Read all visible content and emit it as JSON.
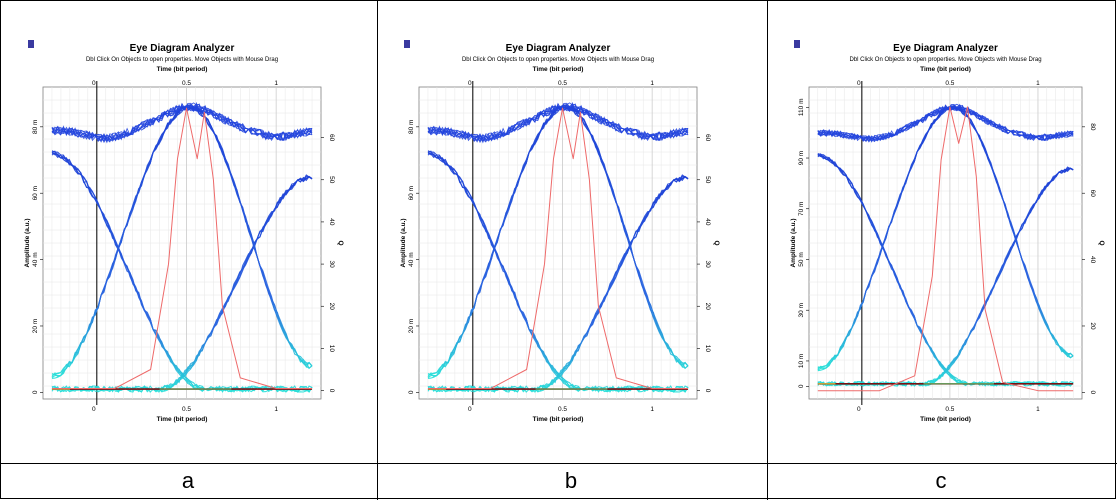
{
  "captions": [
    "a",
    "b",
    "c"
  ],
  "chart_data": [
    {
      "type": "line",
      "title": "Eye Diagram Analyzer",
      "subtitle": "Dbl Click On Objects to open properties.  Move Objects with Mouse Drag",
      "xlabel_top": "Time (bit period)",
      "xlabel": "Time (bit period)",
      "ylabel": "Amplitude (a.u.)",
      "ylabel_right": "Q",
      "xlim": [
        -0.3,
        1.25
      ],
      "ylim": [
        -2,
        92
      ],
      "xticks": [
        0,
        0.5,
        1
      ],
      "xtick_labels": [
        "0",
        "0.5",
        "1"
      ],
      "yticks": [
        0,
        20,
        40,
        60,
        80
      ],
      "ytick_labels": [
        "0",
        "20 m",
        "40 m",
        "60 m",
        "80 m"
      ],
      "ylim_right": [
        -2,
        72
      ],
      "yticks_right": [
        0,
        10,
        20,
        30,
        40,
        50,
        60
      ],
      "ytick_labels_right": [
        "0",
        "10",
        "20",
        "30",
        "40",
        "50",
        "60"
      ],
      "grid": true,
      "traces": {
        "upper_level": 79,
        "upper_peak": 86,
        "lower_level": 1,
        "start_high": 72,
        "end_high": 65,
        "start_low": 5,
        "end_low": 8
      },
      "q_factor": {
        "x": [
          -0.25,
          0.1,
          0.3,
          0.4,
          0.45,
          0.5,
          0.56,
          0.6,
          0.65,
          0.7,
          0.8,
          1.0,
          1.2
        ],
        "values": [
          0.5,
          0.5,
          5,
          30,
          55,
          67,
          55,
          66,
          50,
          20,
          3,
          0.5,
          0.5
        ]
      }
    },
    {
      "type": "line",
      "title": "Eye Diagram Analyzer",
      "subtitle": "Dbl Click On Objects to open properties.  Move Objects with Mouse Drag",
      "xlabel_top": "Time (bit period)",
      "xlabel": "Time (bit period)",
      "ylabel": "Amplitude (a.u.)",
      "ylabel_right": "Q",
      "xlim": [
        -0.3,
        1.25
      ],
      "ylim": [
        -2,
        92
      ],
      "xticks": [
        0,
        0.5,
        1
      ],
      "xtick_labels": [
        "0",
        "0.5",
        "1"
      ],
      "yticks": [
        0,
        20,
        40,
        60,
        80
      ],
      "ytick_labels": [
        "0",
        "20 m",
        "40 m",
        "60 m",
        "80 m"
      ],
      "ylim_right": [
        -2,
        72
      ],
      "yticks_right": [
        0,
        10,
        20,
        30,
        40,
        50,
        60
      ],
      "ytick_labels_right": [
        "0",
        "10",
        "20",
        "30",
        "40",
        "50",
        "60"
      ],
      "grid": true,
      "traces": {
        "upper_level": 79,
        "upper_peak": 86,
        "lower_level": 1,
        "start_high": 72,
        "end_high": 65,
        "start_low": 5,
        "end_low": 8
      },
      "q_factor": {
        "x": [
          -0.25,
          0.1,
          0.3,
          0.4,
          0.45,
          0.5,
          0.56,
          0.6,
          0.65,
          0.7,
          0.8,
          1.0,
          1.2
        ],
        "values": [
          0.5,
          0.5,
          5,
          30,
          55,
          67,
          55,
          66,
          50,
          20,
          3,
          0.5,
          0.5
        ]
      }
    },
    {
      "type": "line",
      "title": "Eye Diagram Analyzer",
      "subtitle": "Dbl Click On Objects to open properties.  Move Objects with Mouse Drag",
      "xlabel_top": "Time (bit period)",
      "xlabel": "Time (bit period)",
      "ylabel": "Amplitude (a.u.)",
      "ylabel_right": "Q",
      "xlim": [
        -0.3,
        1.25
      ],
      "ylim": [
        -5,
        118
      ],
      "xticks": [
        0,
        0.5,
        1
      ],
      "xtick_labels": [
        "0",
        "0.5",
        "1"
      ],
      "yticks": [
        0,
        10,
        30,
        50,
        70,
        90,
        110
      ],
      "ytick_labels": [
        "0",
        "10 m",
        "30 m",
        "50 m",
        "70 m",
        "90 m",
        "110 m"
      ],
      "ylim_right": [
        -2,
        92
      ],
      "yticks_right": [
        0,
        20,
        40,
        60,
        80
      ],
      "ytick_labels_right": [
        "0",
        "20",
        "40",
        "60",
        "80"
      ],
      "grid": true,
      "traces": {
        "upper_level": 100,
        "upper_peak": 110,
        "lower_level": 1,
        "start_high": 91,
        "end_high": 86,
        "start_low": 7,
        "end_low": 12
      },
      "q_factor": {
        "x": [
          -0.25,
          0.1,
          0.3,
          0.4,
          0.45,
          0.5,
          0.55,
          0.6,
          0.65,
          0.7,
          0.8,
          1.0,
          1.2
        ],
        "values": [
          0.5,
          0.5,
          5,
          35,
          70,
          86,
          75,
          86,
          65,
          25,
          3,
          0.5,
          0.5
        ]
      }
    }
  ]
}
